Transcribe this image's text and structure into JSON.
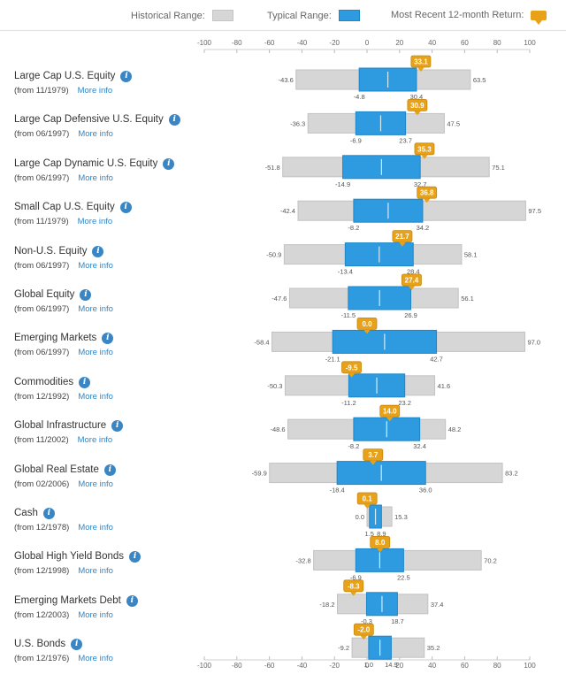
{
  "legend": {
    "historical_label": "Historical Range:",
    "typical_label": "Typical Range:",
    "recent_label": "Most Recent 12-month Return:"
  },
  "more_info_label": "More info",
  "colors": {
    "historical": "#d6d6d6",
    "typical": "#2e9be0",
    "recent": "#e8a21a",
    "link": "#2f86c8"
  },
  "chart_data": {
    "type": "range_bar",
    "x_ticks": [
      -100,
      -80,
      -60,
      -40,
      -20,
      0,
      20,
      40,
      60,
      80,
      100
    ],
    "xlim": [
      -100,
      100
    ],
    "series_names": [
      "Historical Range",
      "Typical Range",
      "Most Recent 12-month Return"
    ],
    "rows": [
      {
        "name": "Large Cap U.S. Equity",
        "since": "(from 11/1979)",
        "hist_min": "-43.6",
        "hist_max": "63.5",
        "typ_min": "-4.8",
        "typ_max": "30.4",
        "recent": "33.1"
      },
      {
        "name": "Large Cap Defensive U.S. Equity",
        "since": "(from 06/1997)",
        "hist_min": "-36.3",
        "hist_max": "47.5",
        "typ_min": "-6.9",
        "typ_max": "23.7",
        "recent": "30.9"
      },
      {
        "name": "Large Cap Dynamic U.S. Equity",
        "since": "(from 06/1997)",
        "hist_min": "-51.8",
        "hist_max": "75.1",
        "typ_min": "-14.9",
        "typ_max": "32.7",
        "recent": "35.3"
      },
      {
        "name": "Small Cap U.S. Equity",
        "since": "(from 11/1979)",
        "hist_min": "-42.4",
        "hist_max": "97.5",
        "typ_min": "-8.2",
        "typ_max": "34.2",
        "recent": "36.8"
      },
      {
        "name": "Non-U.S. Equity",
        "since": "(from 06/1997)",
        "hist_min": "-50.9",
        "hist_max": "58.1",
        "typ_min": "-13.4",
        "typ_max": "28.4",
        "recent": "21.7"
      },
      {
        "name": "Global Equity",
        "since": "(from 06/1997)",
        "hist_min": "-47.6",
        "hist_max": "56.1",
        "typ_min": "-11.5",
        "typ_max": "26.9",
        "recent": "27.4"
      },
      {
        "name": "Emerging Markets",
        "since": "(from 06/1997)",
        "hist_min": "-58.4",
        "hist_max": "97.0",
        "typ_min": "-21.1",
        "typ_max": "42.7",
        "recent": "0.0"
      },
      {
        "name": "Commodities",
        "since": "(from 12/1992)",
        "hist_min": "-50.3",
        "hist_max": "41.6",
        "typ_min": "-11.2",
        "typ_max": "23.2",
        "recent": "-9.5"
      },
      {
        "name": "Global Infrastructure",
        "since": "(from 11/2002)",
        "hist_min": "-48.6",
        "hist_max": "48.2",
        "typ_min": "-8.2",
        "typ_max": "32.4",
        "recent": "14.0"
      },
      {
        "name": "Global Real Estate",
        "since": "(from 02/2006)",
        "hist_min": "-59.9",
        "hist_max": "83.2",
        "typ_min": "-18.4",
        "typ_max": "36.0",
        "recent": "3.7"
      },
      {
        "name": "Cash",
        "since": "(from 12/1978)",
        "hist_min": "0.0",
        "hist_max": "15.3",
        "typ_min": "1.5",
        "typ_max": "8.9",
        "recent": "0.1"
      },
      {
        "name": "Global High Yield Bonds",
        "since": "(from 12/1998)",
        "hist_min": "-32.8",
        "hist_max": "70.2",
        "typ_min": "-6.9",
        "typ_max": "22.5",
        "recent": "8.0"
      },
      {
        "name": "Emerging Markets Debt",
        "since": "(from 12/2003)",
        "hist_min": "-18.2",
        "hist_max": "37.4",
        "typ_min": "-0.3",
        "typ_max": "18.7",
        "recent": "-8.3"
      },
      {
        "name": "U.S. Bonds",
        "since": "(from 12/1976)",
        "hist_min": "-9.2",
        "hist_max": "35.2",
        "typ_min": "1.0",
        "typ_max": "14.9",
        "recent": "-2.0"
      }
    ]
  }
}
